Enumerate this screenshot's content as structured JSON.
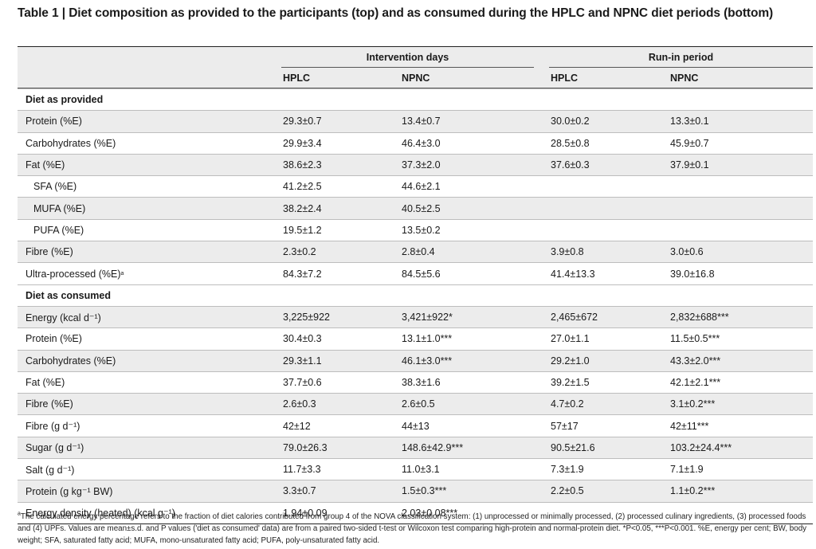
{
  "title": "Table 1 | Diet composition as provided to the participants (top) and as consumed during the HPLC and NPNC diet periods (bottom)",
  "header": {
    "group1": "Intervention days",
    "group2": "Run-in period",
    "cols": [
      "HPLC",
      "NPNC",
      "HPLC",
      "NPNC"
    ]
  },
  "sections": [
    {
      "label": "Diet as provided",
      "rows": [
        {
          "label": "Protein (%E)",
          "values": [
            "29.3±0.7",
            "13.4±0.7",
            "30.0±0.2",
            "13.3±0.1"
          ]
        },
        {
          "label": "Carbohydrates (%E)",
          "values": [
            "29.9±3.4",
            "46.4±3.0",
            "28.5±0.8",
            "45.9±0.7"
          ]
        },
        {
          "label": "Fat (%E)",
          "values": [
            "38.6±2.3",
            "37.3±2.0",
            "37.6±0.3",
            "37.9±0.1"
          ]
        },
        {
          "label": "SFA (%E)",
          "indent": true,
          "values": [
            "41.2±2.5",
            "44.6±2.1",
            "",
            ""
          ]
        },
        {
          "label": "MUFA (%E)",
          "indent": true,
          "values": [
            "38.2±2.4",
            "40.5±2.5",
            "",
            ""
          ]
        },
        {
          "label": "PUFA (%E)",
          "indent": true,
          "values": [
            "19.5±1.2",
            "13.5±0.2",
            "",
            ""
          ]
        },
        {
          "label": "Fibre (%E)",
          "values": [
            "2.3±0.2",
            "2.8±0.4",
            "3.9±0.8",
            "3.0±0.6"
          ]
        },
        {
          "label": "Ultra-processed (%E)",
          "sup": "a",
          "values": [
            "84.3±7.2",
            "84.5±5.6",
            "41.4±13.3",
            "39.0±16.8"
          ]
        }
      ]
    },
    {
      "label": "Diet as consumed",
      "rows": [
        {
          "label": "Energy (kcal d⁻¹)",
          "values": [
            "3,225±922",
            "3,421±922*",
            "2,465±672",
            "2,832±688***"
          ]
        },
        {
          "label": "Protein (%E)",
          "values": [
            "30.4±0.3",
            "13.1±1.0***",
            "27.0±1.1",
            "11.5±0.5***"
          ]
        },
        {
          "label": "Carbohydrates (%E)",
          "values": [
            "29.3±1.1",
            "46.1±3.0***",
            "29.2±1.0",
            "43.3±2.0***"
          ]
        },
        {
          "label": "Fat (%E)",
          "values": [
            "37.7±0.6",
            "38.3±1.6",
            "39.2±1.5",
            "42.1±2.1***"
          ]
        },
        {
          "label": "Fibre (%E)",
          "values": [
            "2.6±0.3",
            "2.6±0.5",
            "4.7±0.2",
            "3.1±0.2***"
          ]
        },
        {
          "label": "Fibre (g d⁻¹)",
          "values": [
            "42±12",
            "44±13",
            "57±17",
            "42±11***"
          ]
        },
        {
          "label": "Sugar (g d⁻¹)",
          "values": [
            "79.0±26.3",
            "148.6±42.9***",
            "90.5±21.6",
            "103.2±24.4***"
          ]
        },
        {
          "label": "Salt (g d⁻¹)",
          "values": [
            "11.7±3.3",
            "11.0±3.1",
            "7.3±1.9",
            "7.1±1.9"
          ]
        },
        {
          "label": "Protein (g kg⁻¹ BW)",
          "values": [
            "3.3±0.7",
            "1.5±0.3***",
            "2.2±0.5",
            "1.1±0.2***"
          ]
        },
        {
          "label": "Energy density (heated) (kcal g⁻¹)",
          "values": [
            "1.94±0.09",
            "2.03±0.08***",
            "",
            ""
          ]
        }
      ]
    }
  ],
  "footnote": {
    "marker": "a",
    "text": "The calculated energy percentage refers to the fraction of diet calories contributed from group 4 of the NOVA classification system: (1) unprocessed or minimally processed, (2) processed culinary ingredients, (3) processed foods and (4) UPFs. Values are mean±s.d. and P values ('diet as consumed' data) are from a paired two-sided t-test or Wilcoxon test comparing high-protein and normal-protein diet. *P<0.05, ***P<0.001. %E, energy per cent; BW, body weight; SFA, saturated fatty acid; MUFA, mono-unsaturated fatty acid; PUFA, poly-unsaturated fatty acid."
  }
}
